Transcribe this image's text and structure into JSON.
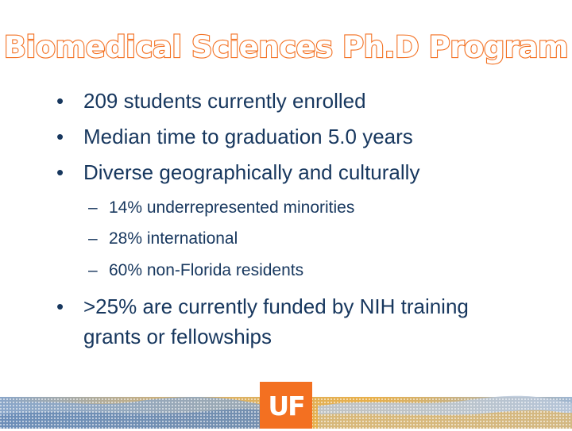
{
  "slide": {
    "title": "Biomedical Sciences Ph.D Program",
    "bullets": [
      {
        "marker": "•",
        "text": " 209 students currently enrolled"
      },
      {
        "marker": "•",
        "text": "Median time to graduation 5.0 years"
      },
      {
        "marker": "•",
        "text": "Diverse geographically and culturally"
      },
      {
        "marker": "–",
        "text": "14% underrepresented minorities"
      },
      {
        "marker": "–",
        "text": "28% international"
      },
      {
        "marker": "–",
        "text": "60% non-Florida residents"
      },
      {
        "marker": "•",
        "text": ">25% are currently funded by NIH training"
      },
      {
        "marker": "",
        "text": "grants or fellowships"
      }
    ]
  },
  "footer": {
    "logo_text": "UF",
    "colors": {
      "brand_orange": "#f37021",
      "brand_blue": "#0021a5",
      "band_gold": "#e8b04a",
      "band_blue": "#8aa6c9"
    }
  }
}
